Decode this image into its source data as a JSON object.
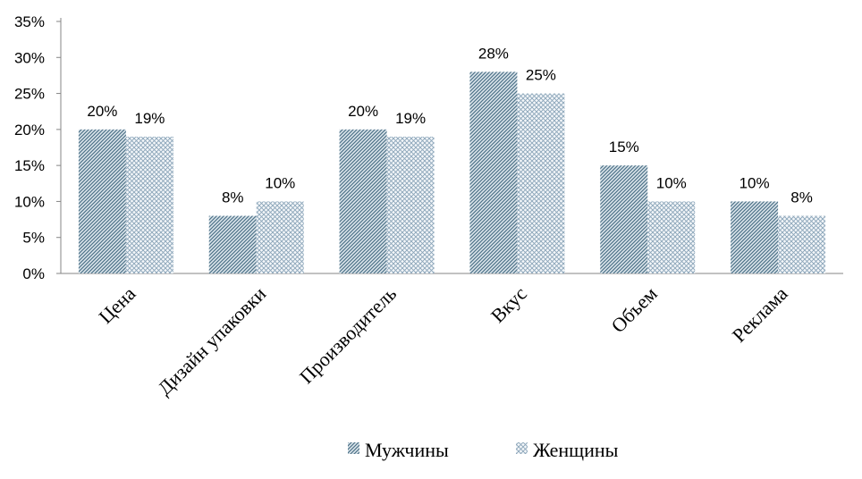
{
  "chart_data": {
    "type": "bar",
    "categories": [
      "Цена",
      "Дизайн упаковки",
      "Производитель",
      "Вкус",
      "Объем",
      "Реклама"
    ],
    "series": [
      {
        "name": "Мужчины",
        "values": [
          20,
          8,
          20,
          28,
          15,
          10
        ],
        "labels": [
          "20%",
          "8%",
          "20%",
          "28%",
          "15%",
          "10%"
        ],
        "pattern": "diagonal-hatch",
        "color": "#5b7f95"
      },
      {
        "name": "Женщины",
        "values": [
          19,
          10,
          19,
          25,
          10,
          8
        ],
        "labels": [
          "19%",
          "10%",
          "19%",
          "25%",
          "10%",
          "8%"
        ],
        "pattern": "crosshatch",
        "color": "#8fa9bc"
      }
    ],
    "ylim": [
      0,
      35
    ],
    "yticks": [
      "0%",
      "5%",
      "10%",
      "15%",
      "20%",
      "25%",
      "30%",
      "35%"
    ],
    "legend_position": "bottom",
    "grid": false,
    "title": "",
    "xlabel": "",
    "ylabel": ""
  }
}
